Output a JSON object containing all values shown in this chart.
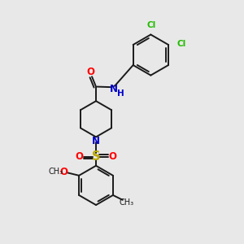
{
  "background_color": "#e8e8e8",
  "bond_color": "#1a1a1a",
  "nitrogen_color": "#0000cc",
  "oxygen_color": "#ff0000",
  "sulfur_color": "#bbaa00",
  "chlorine_color": "#22bb00",
  "figsize": [
    3.0,
    3.0
  ],
  "dpi": 100,
  "xlim": [
    0,
    10
  ],
  "ylim": [
    0,
    10
  ]
}
